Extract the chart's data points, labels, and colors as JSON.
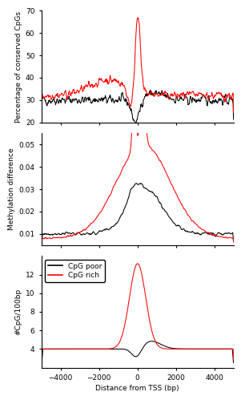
{
  "xlim": [
    -5000,
    5000
  ],
  "panel1_ylim": [
    20,
    70
  ],
  "panel1_yticks": [
    20,
    30,
    40,
    50,
    60,
    70
  ],
  "panel1_ylabel": "Percentage of conserved CpGs",
  "panel2_ylim": [
    0.005,
    0.055
  ],
  "panel2_yticks": [
    0.01,
    0.02,
    0.03,
    0.04,
    0.05
  ],
  "panel2_ylabel": "Methylation difference",
  "panel3_ylim": [
    2,
    14
  ],
  "panel3_yticks": [
    4,
    6,
    8,
    10,
    12
  ],
  "panel3_ylabel": "#CpG/100bp",
  "xlabel": "Distance from TSS (bp)",
  "xticks": [
    -4000,
    -2000,
    0,
    2000,
    4000
  ],
  "line_color_poor": "#000000",
  "line_color_rich": "#ff0000",
  "legend_labels": [
    "CpG poor",
    "CpG rich"
  ],
  "background": "#ffffff"
}
